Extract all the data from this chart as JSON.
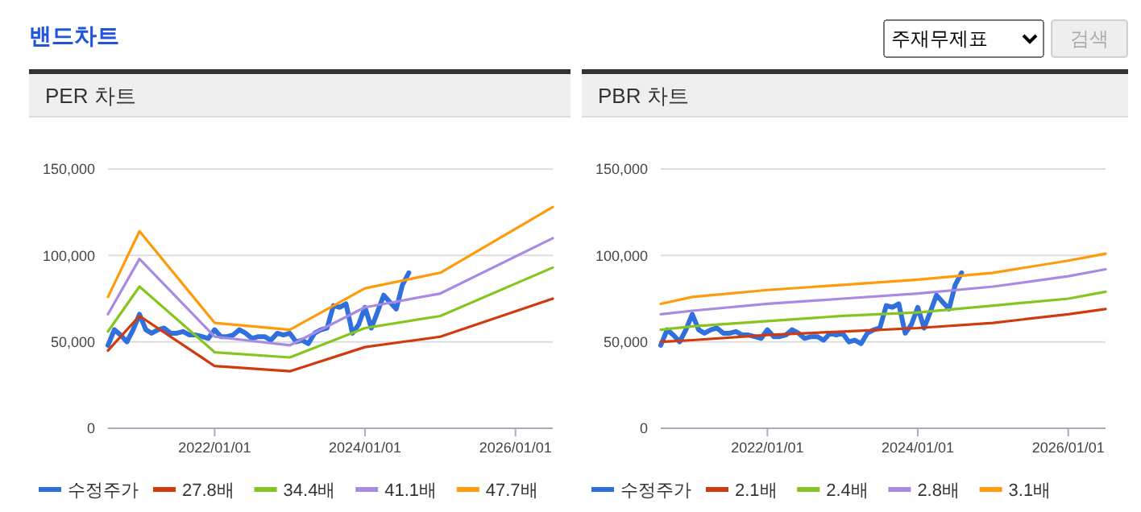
{
  "chart_data": [
    {
      "type": "line",
      "title": "PER 차트",
      "annotations": [
        "밴드차트",
        "주재무제표",
        "검색"
      ],
      "xlim": [
        "2020-08",
        "2026-07"
      ],
      "xticks": [
        {
          "value": "2022-01-01",
          "label": "2022/01/01"
        },
        {
          "value": "2024-01-01",
          "label": "2024/01/01"
        },
        {
          "value": "2026-01-01",
          "label": "2026/01/01"
        }
      ],
      "ylim": [
        0,
        150000
      ],
      "yticks": [
        0,
        {
          "value": 50000,
          "label": "50,000"
        },
        {
          "value": 100000,
          "label": "100,000"
        },
        {
          "value": 150000,
          "label": "150,000"
        }
      ],
      "grid": "y",
      "legend": "bottom",
      "series": [
        {
          "name": "수정주가",
          "color": "#2f6fde",
          "x": [
            "2020-08",
            "2020-09",
            "2020-10",
            "2020-11",
            "2020-12",
            "2021-01",
            "2021-02",
            "2021-03",
            "2021-04",
            "2021-05",
            "2021-06",
            "2021-07",
            "2021-08",
            "2021-09",
            "2021-10",
            "2021-11",
            "2021-12",
            "2022-01",
            "2022-02",
            "2022-03",
            "2022-04",
            "2022-05",
            "2022-06",
            "2022-07",
            "2022-08",
            "2022-09",
            "2022-10",
            "2022-11",
            "2022-12",
            "2023-01",
            "2023-02",
            "2023-03",
            "2023-04",
            "2023-05",
            "2023-06",
            "2023-07",
            "2023-08",
            "2023-09",
            "2023-10",
            "2023-11",
            "2023-12",
            "2024-01",
            "2024-02",
            "2024-03",
            "2024-04",
            "2024-05",
            "2024-06",
            "2024-07",
            "2024-08"
          ],
          "values": [
            48000,
            57000,
            54000,
            50000,
            57000,
            66000,
            57000,
            55000,
            57000,
            58000,
            55000,
            55000,
            56000,
            54000,
            54000,
            53000,
            52000,
            57000,
            53000,
            53000,
            54000,
            57000,
            55000,
            52000,
            53000,
            53000,
            51000,
            55000,
            54000,
            55000,
            50000,
            51000,
            49000,
            55000,
            57000,
            58000,
            71000,
            70000,
            72000,
            55000,
            60000,
            70000,
            58000,
            67000,
            77000,
            73000,
            69000,
            83000,
            90000
          ]
        },
        {
          "name": "27.8배",
          "color": "#d03a0c",
          "x": [
            "2020-08",
            "2021-01",
            "2022-01",
            "2023-01",
            "2024-01",
            "2025-01",
            "2026-07"
          ],
          "values": [
            45000,
            65000,
            36000,
            33000,
            47000,
            53000,
            75000
          ]
        },
        {
          "name": "34.4배",
          "color": "#86c51f",
          "x": [
            "2020-08",
            "2021-01",
            "2022-01",
            "2023-01",
            "2024-01",
            "2025-01",
            "2026-07"
          ],
          "values": [
            56000,
            82000,
            44000,
            41000,
            58000,
            65000,
            93000
          ]
        },
        {
          "name": "41.1배",
          "color": "#a98ae2",
          "x": [
            "2020-08",
            "2021-01",
            "2022-01",
            "2023-01",
            "2024-01",
            "2025-01",
            "2026-07"
          ],
          "values": [
            66000,
            98000,
            53000,
            48000,
            70000,
            78000,
            110000
          ]
        },
        {
          "name": "47.7배",
          "color": "#ff9a0a",
          "x": [
            "2020-08",
            "2021-01",
            "2022-01",
            "2023-01",
            "2024-01",
            "2025-01",
            "2026-07"
          ],
          "values": [
            76000,
            114000,
            61000,
            57000,
            81000,
            90000,
            128000
          ]
        }
      ]
    },
    {
      "type": "line",
      "title": "PBR 차트",
      "xlim": [
        "2020-08",
        "2026-07"
      ],
      "xticks": [
        {
          "value": "2022-01-01",
          "label": "2022/01/01"
        },
        {
          "value": "2024-01-01",
          "label": "2024/01/01"
        },
        {
          "value": "2026-01-01",
          "label": "2026/01/01"
        }
      ],
      "ylim": [
        0,
        150000
      ],
      "yticks": [
        0,
        {
          "value": 50000,
          "label": "50,000"
        },
        {
          "value": 100000,
          "label": "100,000"
        },
        {
          "value": 150000,
          "label": "150,000"
        }
      ],
      "grid": "y",
      "legend": "bottom",
      "series": [
        {
          "name": "수정주가",
          "color": "#2f6fde",
          "x": [
            "2020-08",
            "2020-09",
            "2020-10",
            "2020-11",
            "2020-12",
            "2021-01",
            "2021-02",
            "2021-03",
            "2021-04",
            "2021-05",
            "2021-06",
            "2021-07",
            "2021-08",
            "2021-09",
            "2021-10",
            "2021-11",
            "2021-12",
            "2022-01",
            "2022-02",
            "2022-03",
            "2022-04",
            "2022-05",
            "2022-06",
            "2022-07",
            "2022-08",
            "2022-09",
            "2022-10",
            "2022-11",
            "2022-12",
            "2023-01",
            "2023-02",
            "2023-03",
            "2023-04",
            "2023-05",
            "2023-06",
            "2023-07",
            "2023-08",
            "2023-09",
            "2023-10",
            "2023-11",
            "2023-12",
            "2024-01",
            "2024-02",
            "2024-03",
            "2024-04",
            "2024-05",
            "2024-06",
            "2024-07",
            "2024-08"
          ],
          "values": [
            48000,
            57000,
            54000,
            50000,
            57000,
            66000,
            57000,
            55000,
            57000,
            58000,
            55000,
            55000,
            56000,
            54000,
            54000,
            53000,
            52000,
            57000,
            53000,
            53000,
            54000,
            57000,
            55000,
            52000,
            53000,
            53000,
            51000,
            55000,
            54000,
            55000,
            50000,
            51000,
            49000,
            55000,
            57000,
            58000,
            71000,
            70000,
            72000,
            55000,
            60000,
            70000,
            58000,
            67000,
            77000,
            73000,
            69000,
            83000,
            90000
          ]
        },
        {
          "name": "2.1배",
          "color": "#d03a0c",
          "x": [
            "2020-08",
            "2021-01",
            "2022-01",
            "2023-01",
            "2024-01",
            "2025-01",
            "2026-01",
            "2026-07"
          ],
          "values": [
            50000,
            51000,
            54000,
            56000,
            58000,
            61000,
            66000,
            69000
          ]
        },
        {
          "name": "2.4배",
          "color": "#86c51f",
          "x": [
            "2020-08",
            "2021-01",
            "2022-01",
            "2023-01",
            "2024-01",
            "2025-01",
            "2026-01",
            "2026-07"
          ],
          "values": [
            57000,
            59000,
            62000,
            65000,
            67000,
            71000,
            75000,
            79000
          ]
        },
        {
          "name": "2.8배",
          "color": "#a98ae2",
          "x": [
            "2020-08",
            "2021-01",
            "2022-01",
            "2023-01",
            "2024-01",
            "2025-01",
            "2026-01",
            "2026-07"
          ],
          "values": [
            66000,
            68000,
            72000,
            75000,
            78000,
            82000,
            88000,
            92000
          ]
        },
        {
          "name": "3.1배",
          "color": "#ff9a0a",
          "x": [
            "2020-08",
            "2021-01",
            "2022-01",
            "2023-01",
            "2024-01",
            "2025-01",
            "2026-01",
            "2026-07"
          ],
          "values": [
            72000,
            76000,
            80000,
            83000,
            86000,
            90000,
            97000,
            101000
          ]
        }
      ]
    }
  ]
}
